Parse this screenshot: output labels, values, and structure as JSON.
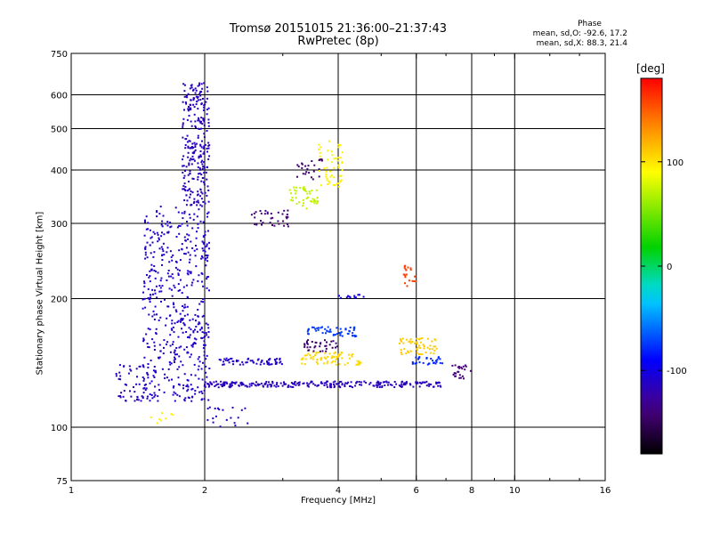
{
  "header": {
    "title_line1": "Tromsø 20151015 21:36:00–21:37:43",
    "title_line2": "RwPretec (8p)"
  },
  "phase_info": {
    "heading": "Phase",
    "line_o": "mean, sd,O: -92.6, 17.2",
    "line_x": "mean, sd,X:  88.3, 21.4"
  },
  "colorbar": {
    "label": "[deg]",
    "ticks": [
      {
        "value": 100,
        "label": "100"
      },
      {
        "value": 0,
        "label": "0"
      },
      {
        "value": -100,
        "label": "-100"
      }
    ],
    "range": [
      -180,
      180
    ]
  },
  "chart_data": {
    "type": "scatter",
    "xlabel": "Frequency [MHz]",
    "ylabel": "Stationary phase Virtual Height [km]",
    "x_scale": "log",
    "y_scale": "log",
    "xlim": [
      1,
      16
    ],
    "ylim": [
      75,
      750
    ],
    "x_ticks": [
      {
        "value": 1,
        "label": "1"
      },
      {
        "value": 2,
        "label": "2"
      },
      {
        "value": 4,
        "label": "4"
      },
      {
        "value": 6,
        "label": "6"
      },
      {
        "value": 8,
        "label": "8"
      },
      {
        "value": 10,
        "label": "10"
      },
      {
        "value": 16,
        "label": "16"
      }
    ],
    "y_ticks": [
      {
        "value": 75,
        "label": "75"
      },
      {
        "value": 100,
        "label": "100"
      },
      {
        "value": 200,
        "label": "200"
      },
      {
        "value": 300,
        "label": "300"
      },
      {
        "value": 400,
        "label": "400"
      },
      {
        "value": 500,
        "label": "500"
      },
      {
        "value": 600,
        "label": "600"
      },
      {
        "value": 750,
        "label": "750"
      }
    ],
    "grid_x": [
      2,
      4,
      6,
      8,
      10
    ],
    "grid_y": [
      100,
      200,
      300,
      400,
      500,
      600
    ],
    "grid": true,
    "color_quantity": "phase [deg]",
    "clusters": [
      {
        "x_range": [
          1.78,
          2.05
        ],
        "y_range": [
          330,
          640
        ],
        "phase": -115,
        "count": 260
      },
      {
        "x_range": [
          1.45,
          2.05
        ],
        "y_range": [
          115,
          330
        ],
        "phase": -110,
        "count": 520
      },
      {
        "x_range": [
          1.25,
          1.5
        ],
        "y_range": [
          115,
          140
        ],
        "phase": -115,
        "count": 50
      },
      {
        "x_range": [
          2.0,
          6.9
        ],
        "y_range": [
          124,
          128
        ],
        "phase": -115,
        "count": 260
      },
      {
        "x_range": [
          2.15,
          3.0
        ],
        "y_range": [
          140,
          145
        ],
        "phase": -110,
        "count": 60
      },
      {
        "x_range": [
          2.55,
          3.1
        ],
        "y_range": [
          295,
          322
        ],
        "phase": -140,
        "count": 35
      },
      {
        "x_range": [
          3.1,
          3.6
        ],
        "y_range": [
          325,
          365
        ],
        "phase": 72,
        "count": 45
      },
      {
        "x_range": [
          3.6,
          4.1
        ],
        "y_range": [
          360,
          470
        ],
        "phase": 95,
        "count": 55
      },
      {
        "x_range": [
          3.2,
          3.7
        ],
        "y_range": [
          380,
          425
        ],
        "phase": -145,
        "count": 25
      },
      {
        "x_range": [
          3.4,
          4.4
        ],
        "y_range": [
          163,
          172
        ],
        "phase": -75,
        "count": 55
      },
      {
        "x_range": [
          3.3,
          4.5
        ],
        "y_range": [
          140,
          150
        ],
        "phase": 105,
        "count": 75
      },
      {
        "x_range": [
          3.3,
          4.0
        ],
        "y_range": [
          150,
          160
        ],
        "phase": -145,
        "count": 35
      },
      {
        "x_range": [
          5.5,
          6.7
        ],
        "y_range": [
          148,
          162
        ],
        "phase": 110,
        "count": 60
      },
      {
        "x_range": [
          5.8,
          6.9
        ],
        "y_range": [
          140,
          146
        ],
        "phase": -80,
        "count": 30
      },
      {
        "x_range": [
          5.6,
          6.0
        ],
        "y_range": [
          210,
          240
        ],
        "phase": 160,
        "count": 20
      },
      {
        "x_range": [
          7.2,
          8.0
        ],
        "y_range": [
          130,
          140
        ],
        "phase": -140,
        "count": 25
      },
      {
        "x_range": [
          4.0,
          4.6
        ],
        "y_range": [
          200,
          205
        ],
        "phase": -100,
        "count": 12
      },
      {
        "x_range": [
          2.0,
          2.5
        ],
        "y_range": [
          100,
          112
        ],
        "phase": -110,
        "count": 20
      },
      {
        "x_range": [
          1.5,
          1.7
        ],
        "y_range": [
          102,
          108
        ],
        "phase": 95,
        "count": 8
      }
    ]
  }
}
